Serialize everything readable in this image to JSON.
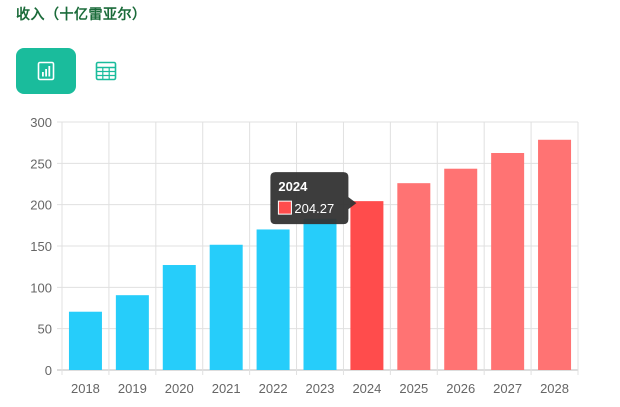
{
  "header": {
    "title": "收入（十亿雷亚尔）"
  },
  "view_toggle": {
    "chart_icon": "bar-chart-icon",
    "table_icon": "table-grid-icon",
    "active_color": "#1abc9c"
  },
  "colors": {
    "historical": "#26cdfa",
    "forecast": "#ff7373",
    "highlight": "#ff4c4c",
    "grid": "#e0e0e0",
    "tooltip_bg": "#333333"
  },
  "chart_data": {
    "type": "bar",
    "title": "收入（十亿雷亚尔）",
    "categories": [
      "2018",
      "2019",
      "2020",
      "2021",
      "2022",
      "2023",
      "2024",
      "2025",
      "2026",
      "2027",
      "2028"
    ],
    "values": [
      70.5,
      90.5,
      127,
      151.5,
      170,
      183,
      204.27,
      226,
      243.5,
      262.5,
      278.5
    ],
    "forecast_from": "2024",
    "highlighted": "2024",
    "ylim": [
      0,
      300
    ],
    "yticks": [
      0,
      50,
      100,
      150,
      200,
      250,
      300
    ],
    "grid": true,
    "tooltip": {
      "title": "2024",
      "value": "204.27"
    }
  }
}
